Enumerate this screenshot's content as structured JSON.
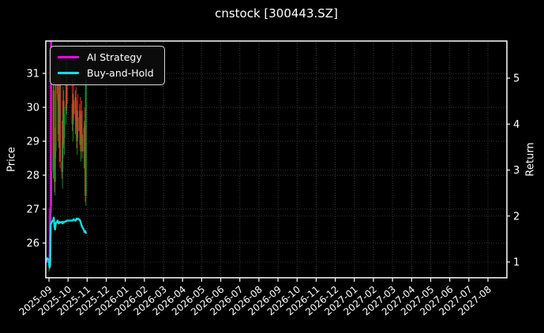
{
  "title": "cnstock [300443.SZ]",
  "chart_data": {
    "type": "candlestick+line",
    "title": "cnstock [300443.SZ]",
    "ylabel_left": "Price",
    "ylabel_right": "Return",
    "grid": true,
    "background": "#000000",
    "spine_color": "#ffffff",
    "grid_color": "#3a3a3a",
    "text_color": "#ffffff",
    "y_left_ticks": [
      26,
      27,
      28,
      29,
      30,
      31
    ],
    "y_right_ticks": [
      1,
      2,
      3,
      4,
      5
    ],
    "y_left_range": [
      24.98,
      31.95
    ],
    "y_right_range": [
      0.66,
      5.81
    ],
    "x_tick_labels": [
      "2025-09",
      "2025-10",
      "2025-11",
      "2025-12",
      "2026-01",
      "2026-02",
      "2026-03",
      "2026-04",
      "2026-05",
      "2026-06",
      "2026-07",
      "2026-08",
      "2026-09",
      "2026-10",
      "2026-11",
      "2026-12",
      "2027-01",
      "2027-02",
      "2027-03",
      "2027-04",
      "2027-05",
      "2027-06",
      "2027-07",
      "2027-08"
    ],
    "legend": {
      "position": "upper-left",
      "entries": [
        {
          "label": "AI Strategy",
          "color": "#ff00ff"
        },
        {
          "label": "Buy-and-Hold",
          "color": "#00e5e5"
        }
      ]
    },
    "series": [
      {
        "name": "AI Strategy",
        "axis": "left",
        "color": "#ff00ff",
        "points": [
          [
            "2025-08-28",
            25.45
          ],
          [
            "2025-08-29",
            25.48
          ],
          [
            "2025-09-01",
            25.42
          ],
          [
            "2025-09-02",
            25.3
          ],
          [
            "2025-09-03",
            27.0
          ],
          [
            "2025-09-04",
            27.05
          ],
          [
            "2025-09-05",
            36.0
          ],
          [
            "2025-10-30",
            36.0
          ]
        ]
      },
      {
        "name": "Buy-and-Hold",
        "axis": "left",
        "color": "#00e5e5",
        "points": [
          [
            "2025-08-28",
            25.5
          ],
          [
            "2025-08-29",
            25.55
          ],
          [
            "2025-09-01",
            25.5
          ],
          [
            "2025-09-02",
            25.28
          ],
          [
            "2025-09-03",
            25.35
          ],
          [
            "2025-09-04",
            26.55
          ],
          [
            "2025-09-05",
            26.6
          ],
          [
            "2025-09-08",
            26.68
          ],
          [
            "2025-09-09",
            26.75
          ],
          [
            "2025-09-10",
            26.48
          ],
          [
            "2025-09-11",
            26.4
          ],
          [
            "2025-09-12",
            26.58
          ],
          [
            "2025-09-15",
            26.66
          ],
          [
            "2025-09-16",
            26.6
          ],
          [
            "2025-09-17",
            26.58
          ],
          [
            "2025-09-18",
            26.62
          ],
          [
            "2025-09-19",
            26.6
          ],
          [
            "2025-09-22",
            26.62
          ],
          [
            "2025-09-23",
            26.58
          ],
          [
            "2025-09-24",
            26.62
          ],
          [
            "2025-09-25",
            26.6
          ],
          [
            "2025-09-26",
            26.62
          ],
          [
            "2025-09-29",
            26.64
          ],
          [
            "2025-09-30",
            26.66
          ],
          [
            "2025-10-09",
            26.66
          ],
          [
            "2025-10-10",
            26.7
          ],
          [
            "2025-10-13",
            26.66
          ],
          [
            "2025-10-14",
            26.68
          ],
          [
            "2025-10-15",
            26.72
          ],
          [
            "2025-10-16",
            26.7
          ],
          [
            "2025-10-17",
            26.72
          ],
          [
            "2025-10-20",
            26.68
          ],
          [
            "2025-10-21",
            26.64
          ],
          [
            "2025-10-22",
            26.58
          ],
          [
            "2025-10-23",
            26.52
          ],
          [
            "2025-10-24",
            26.48
          ],
          [
            "2025-10-27",
            26.38
          ],
          [
            "2025-10-28",
            26.32
          ],
          [
            "2025-10-29",
            26.35
          ],
          [
            "2025-10-30",
            26.3
          ]
        ]
      }
    ],
    "candles": {
      "up_color": "#00a020",
      "down_color": "#ff2a2a",
      "data": [
        [
          "2025-09-01",
          25.3,
          25.65,
          25.15,
          25.55
        ],
        [
          "2025-09-02",
          25.55,
          25.7,
          25.2,
          25.3
        ],
        [
          "2025-09-03",
          25.3,
          26.3,
          25.25,
          26.2
        ],
        [
          "2025-09-04",
          26.2,
          27.3,
          26.1,
          27.1
        ],
        [
          "2025-09-05",
          27.1,
          28.3,
          26.9,
          28.1
        ],
        [
          "2025-09-08",
          28.1,
          30.9,
          27.9,
          30.5
        ],
        [
          "2025-09-09",
          30.5,
          31.0,
          28.4,
          28.6
        ],
        [
          "2025-09-10",
          28.6,
          29.4,
          27.5,
          27.8
        ],
        [
          "2025-09-11",
          27.8,
          28.9,
          27.4,
          28.7
        ],
        [
          "2025-09-12",
          28.7,
          31.2,
          28.5,
          31.0
        ],
        [
          "2025-09-15",
          31.0,
          31.5,
          30.2,
          30.4
        ],
        [
          "2025-09-16",
          30.4,
          30.8,
          29.0,
          29.2
        ],
        [
          "2025-09-17",
          29.2,
          30.3,
          28.8,
          30.1
        ],
        [
          "2025-09-18",
          30.1,
          31.3,
          29.8,
          30.9
        ],
        [
          "2025-09-19",
          30.9,
          31.1,
          28.2,
          28.4
        ],
        [
          "2025-09-22",
          28.4,
          29.6,
          27.9,
          28.1
        ],
        [
          "2025-09-23",
          28.1,
          29.0,
          27.6,
          28.8
        ],
        [
          "2025-09-24",
          28.8,
          30.6,
          28.5,
          30.2
        ],
        [
          "2025-09-25",
          30.2,
          30.5,
          28.9,
          29.1
        ],
        [
          "2025-09-26",
          29.1,
          30.0,
          28.6,
          29.8
        ],
        [
          "2025-09-29",
          29.8,
          31.4,
          29.5,
          31.1
        ],
        [
          "2025-09-30",
          31.1,
          31.5,
          29.9,
          30.1
        ],
        [
          "2025-10-08",
          30.1,
          30.9,
          29.3,
          29.5
        ],
        [
          "2025-10-09",
          29.5,
          30.4,
          29.0,
          30.2
        ],
        [
          "2025-10-10",
          30.2,
          30.7,
          29.6,
          29.8
        ],
        [
          "2025-10-13",
          29.8,
          30.5,
          29.2,
          30.3
        ],
        [
          "2025-10-14",
          30.3,
          30.6,
          29.4,
          29.6
        ],
        [
          "2025-10-15",
          29.6,
          30.2,
          28.8,
          29.0
        ],
        [
          "2025-10-16",
          29.0,
          29.9,
          28.6,
          29.7
        ],
        [
          "2025-10-17",
          29.7,
          30.4,
          29.1,
          29.3
        ],
        [
          "2025-10-20",
          29.3,
          30.1,
          28.9,
          29.9
        ],
        [
          "2025-10-21",
          29.9,
          30.3,
          28.7,
          28.9
        ],
        [
          "2025-10-22",
          28.9,
          29.8,
          28.4,
          29.5
        ],
        [
          "2025-10-23",
          29.5,
          30.2,
          29.0,
          29.2
        ],
        [
          "2025-10-24",
          29.2,
          29.9,
          28.5,
          28.7
        ],
        [
          "2025-10-27",
          28.7,
          29.6,
          28.2,
          29.4
        ],
        [
          "2025-10-28",
          29.4,
          30.0,
          28.8,
          29.0
        ],
        [
          "2025-10-29",
          29.0,
          29.5,
          27.2,
          27.4
        ],
        [
          "2025-10-30",
          27.4,
          31.2,
          27.1,
          30.9
        ]
      ]
    }
  }
}
